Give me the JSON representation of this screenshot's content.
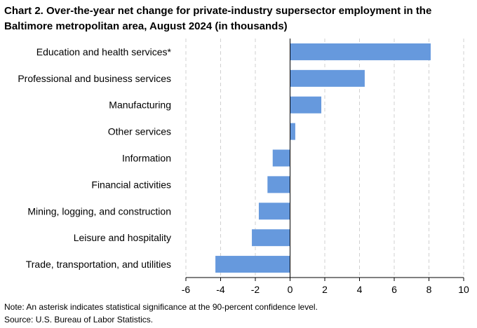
{
  "chart_data": {
    "type": "bar",
    "orientation": "horizontal",
    "title": "Chart 2. Over-the-year net change for private-industry supersector employment in the Baltimore metropolitan area, August 2024 (in thousands)",
    "categories": [
      "Education and health services*",
      "Professional and business services",
      "Manufacturing",
      "Other services",
      "Information",
      "Financial activities",
      "Mining, logging, and construction",
      "Leisure and hospitality",
      "Trade, transportation, and utilities"
    ],
    "values": [
      8.1,
      4.3,
      1.8,
      0.3,
      -1.0,
      -1.3,
      -1.8,
      -2.2,
      -4.3
    ],
    "xlim": [
      -6,
      10
    ],
    "xticks": [
      "-6",
      "-4",
      "-2",
      "0",
      "2",
      "4",
      "6",
      "8",
      "10"
    ],
    "xlabel": "",
    "ylabel": "",
    "grid": true,
    "bar_color": "#6699dd"
  },
  "footnotes": {
    "note": "Note: An asterisk indicates statistical significance at the 90-percent confidence level.",
    "source": "Source: U.S. Bureau of Labor Statistics."
  }
}
